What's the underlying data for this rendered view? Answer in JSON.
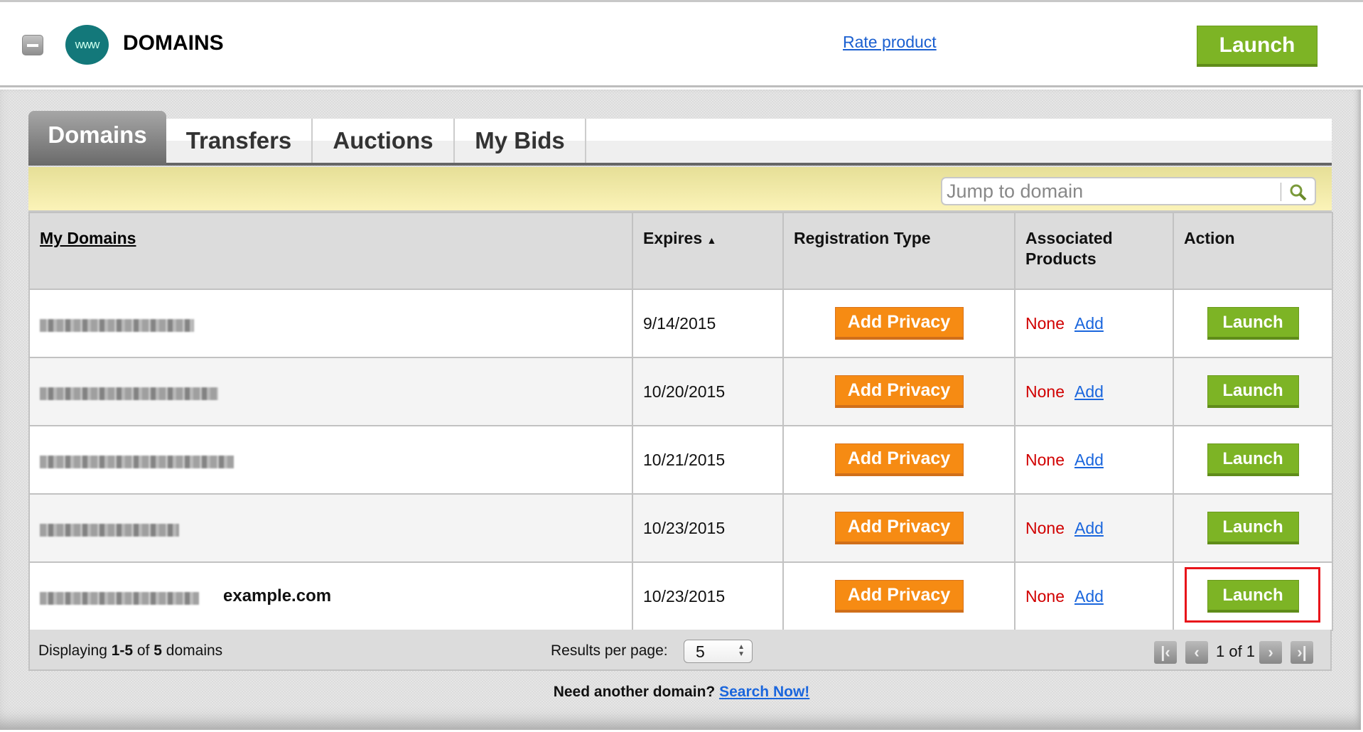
{
  "header": {
    "title": "DOMAINS",
    "logo_text": "www",
    "rate_link": "Rate product",
    "launch_label": "Launch"
  },
  "tabs": [
    {
      "label": "Domains",
      "active": true
    },
    {
      "label": "Transfers"
    },
    {
      "label": "Auctions"
    },
    {
      "label": "My Bids"
    }
  ],
  "search": {
    "placeholder": "Jump to domain",
    "value": ""
  },
  "table": {
    "columns": [
      "My Domains",
      "Expires",
      "Registration Type",
      "Associated Products",
      "Action"
    ],
    "sort_column": "Expires",
    "sort_direction": "ascending",
    "rows": [
      {
        "domain_redacted": true,
        "label": "",
        "expires": "9/14/2015",
        "reg_button": "Add Privacy",
        "products": "None",
        "add_link": "Add",
        "action": "Launch"
      },
      {
        "domain_redacted": true,
        "label": "",
        "expires": "10/20/2015",
        "reg_button": "Add Privacy",
        "products": "None",
        "add_link": "Add",
        "action": "Launch"
      },
      {
        "domain_redacted": true,
        "label": "",
        "expires": "10/21/2015",
        "reg_button": "Add Privacy",
        "products": "None",
        "add_link": "Add",
        "action": "Launch"
      },
      {
        "domain_redacted": true,
        "label": "",
        "expires": "10/23/2015",
        "reg_button": "Add Privacy",
        "products": "None",
        "add_link": "Add",
        "action": "Launch"
      },
      {
        "domain_redacted": true,
        "label": "example.com",
        "expires": "10/23/2015",
        "reg_button": "Add Privacy",
        "products": "None",
        "add_link": "Add",
        "action": "Launch",
        "highlighted": true
      }
    ]
  },
  "footer": {
    "displaying_prefix": "Displaying ",
    "range": "1-5",
    "of": " of ",
    "total": "5",
    "suffix": " domains",
    "results_per_page_label": "Results per page:",
    "results_per_page": "5",
    "page_text": "1 of 1"
  },
  "bottom": {
    "prompt": "Need another domain?",
    "link": "Search Now!"
  },
  "colors": {
    "launch_green": "#7db425",
    "add_privacy_orange": "#f68b13",
    "none_red": "#d10000",
    "link_blue": "#1a66dd",
    "highlight_red": "#e8141a",
    "logo_teal": "#13787a"
  }
}
